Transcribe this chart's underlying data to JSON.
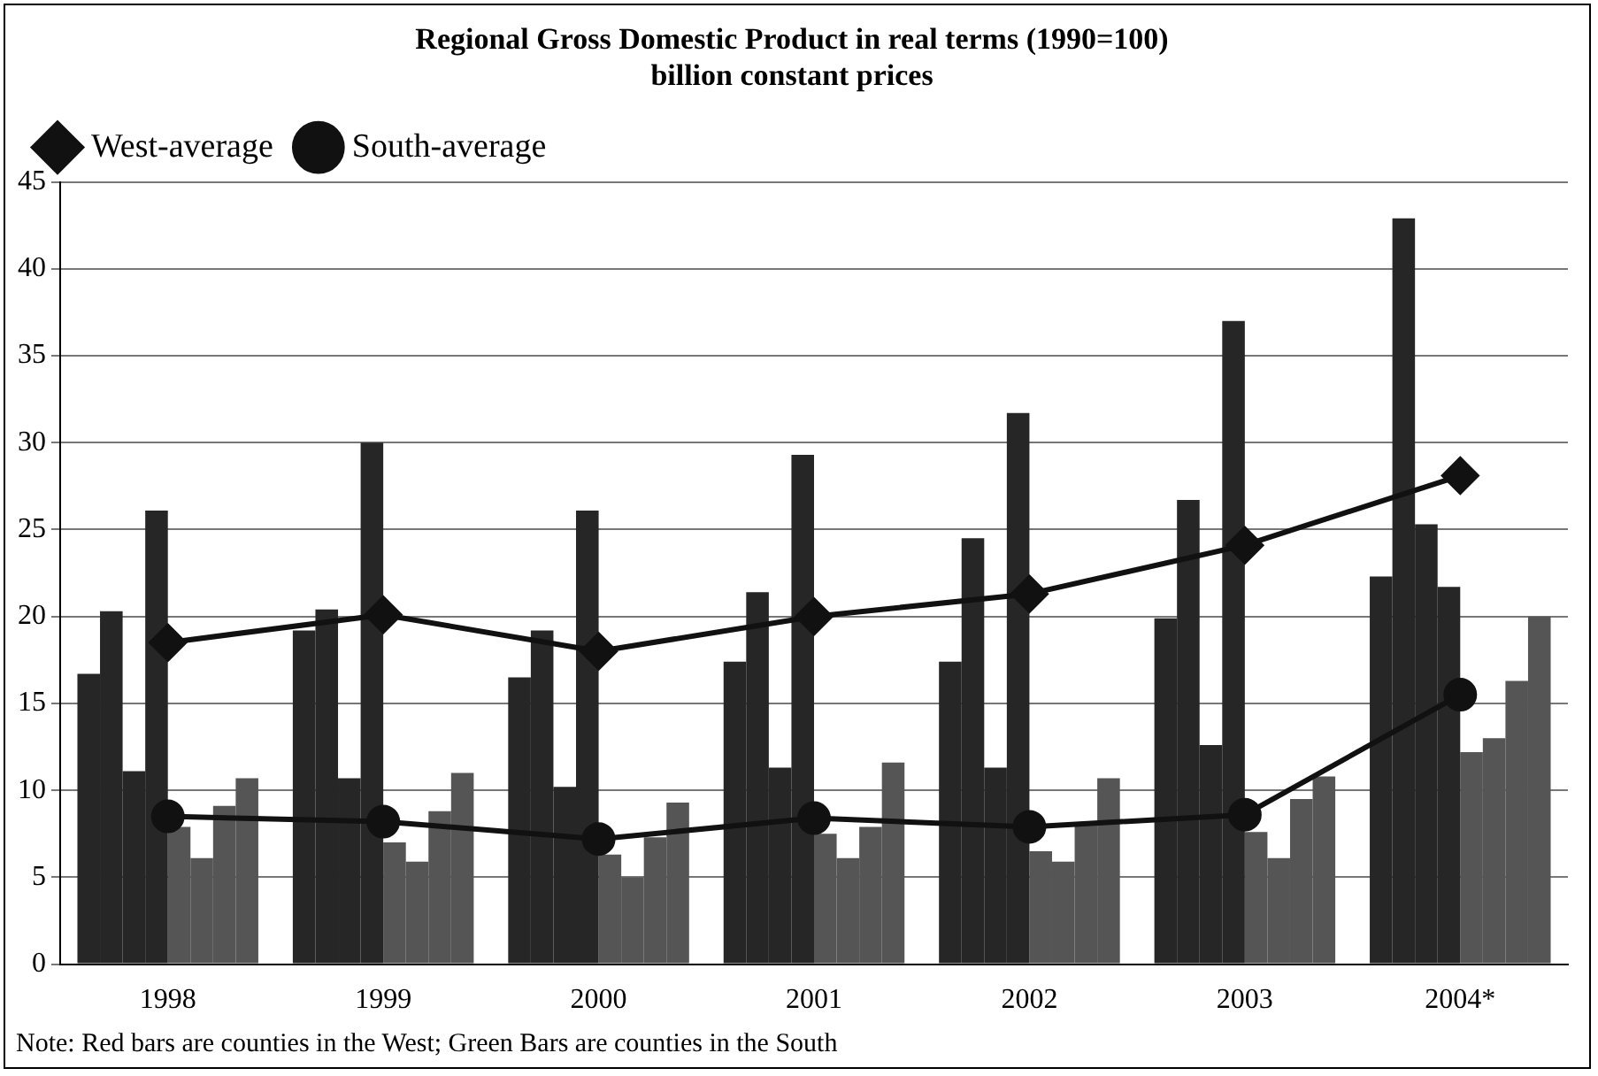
{
  "chart_data": {
    "type": "bar",
    "title": "Regional Gross Domestic Product in real terms (1990=100)",
    "subtitle": "billion constant prices",
    "categories": [
      "1998",
      "1999",
      "2000",
      "2001",
      "2002",
      "2003",
      "2004*"
    ],
    "series": [
      {
        "color": "#262626",
        "values": [
          16.7,
          19.2,
          16.5,
          17.4,
          17.4,
          19.9,
          22.3
        ]
      },
      {
        "color": "#262626",
        "values": [
          20.3,
          20.4,
          19.2,
          21.4,
          24.5,
          26.7,
          42.9
        ]
      },
      {
        "color": "#262626",
        "values": [
          11.1,
          10.7,
          10.2,
          11.3,
          11.3,
          12.6,
          25.3
        ]
      },
      {
        "color": "#262626",
        "values": [
          26.1,
          30.0,
          26.1,
          29.3,
          31.7,
          37.0,
          21.7
        ]
      },
      {
        "color": "#555555",
        "values": [
          7.9,
          7.0,
          6.3,
          7.5,
          6.5,
          7.6,
          12.2
        ]
      },
      {
        "color": "#555555",
        "values": [
          6.1,
          5.9,
          5.0,
          6.1,
          5.9,
          6.1,
          13.0
        ]
      },
      {
        "color": "#555555",
        "values": [
          9.1,
          8.8,
          7.3,
          7.9,
          8.0,
          9.5,
          16.3
        ]
      },
      {
        "color": "#555555",
        "values": [
          10.7,
          11.0,
          9.3,
          11.6,
          10.7,
          10.8,
          20.0
        ]
      },
      {
        "type": "line",
        "name": "West-average",
        "color": "#111111",
        "marker": "diamond",
        "values": [
          18.5,
          20.1,
          18.0,
          20.0,
          21.3,
          24.1,
          28.1
        ]
      },
      {
        "type": "line",
        "name": "South-average",
        "color": "#111111",
        "marker": "circle",
        "values": [
          8.5,
          8.2,
          7.2,
          8.4,
          7.9,
          8.6,
          15.5
        ]
      }
    ],
    "ylim": [
      0,
      45
    ],
    "yticks": [
      0,
      5,
      10,
      15,
      20,
      25,
      30,
      35,
      40,
      45
    ],
    "grid": "y",
    "legend": "top left",
    "annotations": [
      "Note: Red bars are counties in the West; Green Bars are counties in the South"
    ]
  }
}
